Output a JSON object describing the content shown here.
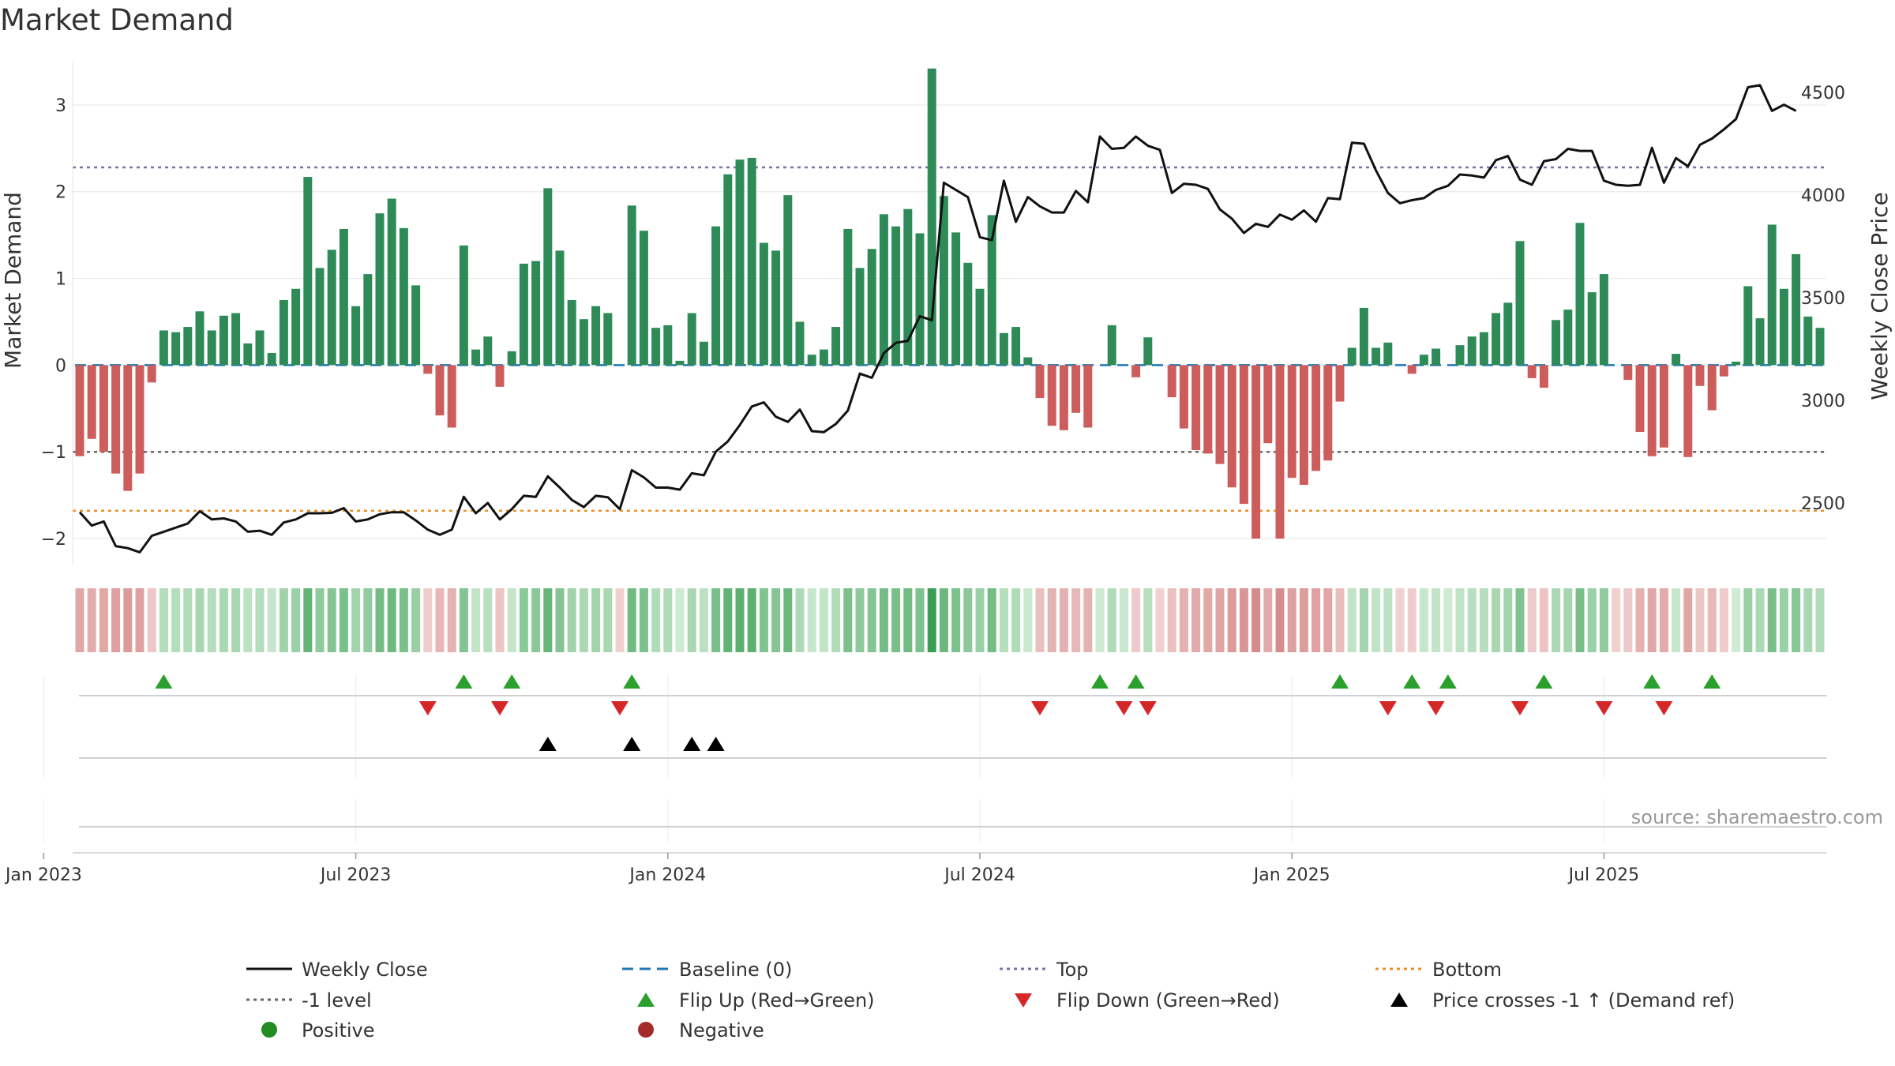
{
  "chart_data": {
    "type": "bar",
    "title": "Market Demand",
    "ylabel_left": "Market Demand",
    "ylabel_right": "Weekly Close Price",
    "ylim_left": [
      -2.3,
      3.5
    ],
    "ylim_right": [
      2200,
      4650
    ],
    "left_ticks": [
      -2,
      -1,
      0,
      1,
      2,
      3
    ],
    "right_ticks": [
      2500,
      3000,
      3500,
      4000,
      4500
    ],
    "x_tick_labels": [
      "Jan 2023",
      "Jul 2023",
      "Jan 2024",
      "Jul 2024",
      "Jan 2025",
      "Jul 2025"
    ],
    "x_tick_week_index": [
      -3,
      23,
      49,
      75,
      101,
      127
    ],
    "reference_lines": {
      "top": 2.28,
      "minus_one": -1,
      "bottom": -1.68,
      "baseline": 0
    },
    "colors": {
      "positive": "#2e8b57",
      "negative": "#cd5c5c",
      "price": "#111111",
      "top": "#7a6fb0",
      "minus_one": "#666666",
      "bottom": "#e8912a",
      "baseline": "#1f77b4",
      "flip_up": "#2ca02c",
      "flip_down": "#d62728",
      "cross": "#000000",
      "heat_pos_hi": "#3a9e52",
      "heat_pos_lo": "#d6efd9",
      "heat_neg_hi": "#c96a6a",
      "heat_neg_lo": "#f3d6d6"
    },
    "series": [
      {
        "name": "Market Demand",
        "values": [
          -1.05,
          -0.85,
          -1.0,
          -1.25,
          -1.45,
          -1.25,
          -0.2,
          0.4,
          0.38,
          0.44,
          0.62,
          0.4,
          0.57,
          0.6,
          0.25,
          0.4,
          0.14,
          0.75,
          0.88,
          2.17,
          1.12,
          1.33,
          1.57,
          0.68,
          1.05,
          1.75,
          1.92,
          1.58,
          0.92,
          -0.1,
          -0.58,
          -0.72,
          1.38,
          0.18,
          0.33,
          -0.25,
          0.16,
          1.17,
          1.2,
          2.04,
          1.32,
          0.75,
          0.53,
          0.68,
          0.6,
          0.0,
          1.84,
          1.55,
          0.43,
          0.46,
          0.05,
          0.6,
          0.27,
          1.6,
          2.2,
          2.37,
          2.39,
          1.41,
          1.32,
          1.96,
          0.5,
          0.12,
          0.18,
          0.44,
          1.57,
          1.12,
          1.34,
          1.74,
          1.6,
          1.8,
          1.52,
          3.42,
          1.95,
          1.53,
          1.18,
          0.88,
          1.73,
          0.37,
          0.44,
          0.09,
          -0.38,
          -0.7,
          -0.75,
          -0.55,
          -0.72,
          0.0,
          0.46,
          0.0,
          -0.14,
          0.32,
          0.0,
          -0.37,
          -0.73,
          -0.98,
          -1.02,
          -1.14,
          -1.41,
          -1.6,
          -2.0,
          -0.9,
          -2.0,
          -1.3,
          -1.38,
          -1.22,
          -1.1,
          -0.42,
          0.2,
          0.66,
          0.2,
          0.26,
          0.0,
          -0.1,
          0.12,
          0.19,
          0.0,
          0.23,
          0.33,
          0.38,
          0.6,
          0.72,
          1.43,
          -0.15,
          -0.26,
          0.52,
          0.64,
          1.64,
          0.84,
          1.05,
          0.0,
          -0.17,
          -0.77,
          -1.05,
          -0.95,
          0.13,
          -1.06,
          -0.24,
          -0.52,
          -0.13,
          0.04,
          0.91,
          0.54,
          1.62,
          0.88,
          1.28,
          0.56,
          0.43
        ]
      },
      {
        "name": "Weekly Close",
        "values": [
          2455,
          2390,
          2410,
          2290,
          2280,
          2260,
          2340,
          2360,
          2380,
          2400,
          2460,
          2420,
          2425,
          2410,
          2360,
          2365,
          2345,
          2405,
          2420,
          2450,
          2450,
          2452,
          2475,
          2410,
          2420,
          2445,
          2455,
          2455,
          2415,
          2370,
          2345,
          2370,
          2530,
          2450,
          2500,
          2420,
          2470,
          2535,
          2530,
          2630,
          2575,
          2515,
          2480,
          2535,
          2528,
          2470,
          2660,
          2625,
          2575,
          2575,
          2565,
          2645,
          2635,
          2750,
          2800,
          2880,
          2970,
          2990,
          2920,
          2895,
          2955,
          2850,
          2845,
          2885,
          2950,
          3130,
          3110,
          3230,
          3280,
          3290,
          3410,
          3390,
          4060,
          4025,
          3990,
          3795,
          3780,
          4070,
          3870,
          3990,
          3945,
          3915,
          3915,
          4020,
          3965,
          4285,
          4225,
          4230,
          4285,
          4240,
          4220,
          4010,
          4055,
          4050,
          4030,
          3930,
          3885,
          3815,
          3860,
          3845,
          3905,
          3880,
          3925,
          3870,
          3985,
          3980,
          4255,
          4250,
          4120,
          4010,
          3960,
          3975,
          3985,
          4025,
          4045,
          4100,
          4095,
          4085,
          4170,
          4190,
          4075,
          4050,
          4165,
          4175,
          4225,
          4215,
          4215,
          4070,
          4050,
          4045,
          4050,
          4230,
          4060,
          4180,
          4140,
          4245,
          4275,
          4320,
          4370,
          4525,
          4535,
          4410,
          4440,
          4410
        ]
      }
    ],
    "heat_values": [
      -1.05,
      -0.85,
      -1.0,
      -1.25,
      -1.45,
      -1.25,
      -0.2,
      0.4,
      0.38,
      0.44,
      0.62,
      0.4,
      0.57,
      0.6,
      0.25,
      0.4,
      0.14,
      0.75,
      0.88,
      2.17,
      1.12,
      1.33,
      1.57,
      0.68,
      1.05,
      1.75,
      1.92,
      1.58,
      0.92,
      -0.1,
      -0.58,
      -0.72,
      1.38,
      0.18,
      0.33,
      -0.25,
      0.16,
      1.17,
      1.2,
      2.04,
      1.32,
      0.75,
      0.53,
      0.68,
      0.6,
      -0.05,
      1.84,
      1.55,
      0.43,
      0.46,
      0.05,
      0.6,
      0.27,
      1.6,
      2.2,
      2.37,
      2.39,
      1.41,
      1.32,
      1.96,
      0.5,
      0.12,
      0.18,
      0.44,
      1.57,
      1.12,
      1.34,
      1.74,
      1.6,
      1.8,
      1.52,
      3.42,
      1.95,
      1.53,
      1.18,
      0.88,
      1.73,
      0.37,
      0.44,
      0.09,
      -0.38,
      -0.7,
      -0.75,
      -0.55,
      -0.72,
      0.05,
      0.46,
      0.1,
      -0.14,
      0.32,
      -0.05,
      -0.37,
      -0.73,
      -0.98,
      -1.02,
      -1.14,
      -1.41,
      -1.6,
      -2.0,
      -0.9,
      -2.0,
      -1.3,
      -1.38,
      -1.22,
      -1.1,
      -0.42,
      0.2,
      0.66,
      0.2,
      0.26,
      -0.05,
      -0.1,
      0.12,
      0.19,
      0.05,
      0.23,
      0.33,
      0.38,
      0.6,
      0.72,
      1.43,
      -0.15,
      -0.26,
      0.52,
      0.64,
      1.64,
      0.84,
      1.05,
      -0.05,
      -0.17,
      -0.77,
      -1.05,
      -0.95,
      0.13,
      -1.06,
      -0.24,
      -0.52,
      -0.13,
      0.04,
      0.91,
      0.54,
      1.62,
      0.88,
      1.28,
      0.56,
      0.43
    ],
    "flip_up_weeks": [
      7,
      32,
      36,
      46,
      85,
      88,
      105,
      111,
      114,
      122,
      131,
      136
    ],
    "flip_down_weeks": [
      29,
      35,
      45,
      80,
      87,
      89,
      109,
      113,
      120,
      127,
      132
    ],
    "cross_weeks": [
      39,
      46,
      51,
      53
    ],
    "legend": [
      "Weekly Close",
      "Baseline (0)",
      "Top",
      "Bottom",
      "-1 level",
      "Flip Up (Red→Green)",
      "Flip Down (Green→Red)",
      "Price crosses -1 ↑ (Demand ref)",
      "Positive",
      "Negative"
    ],
    "source": "source: sharemaestro.com"
  }
}
